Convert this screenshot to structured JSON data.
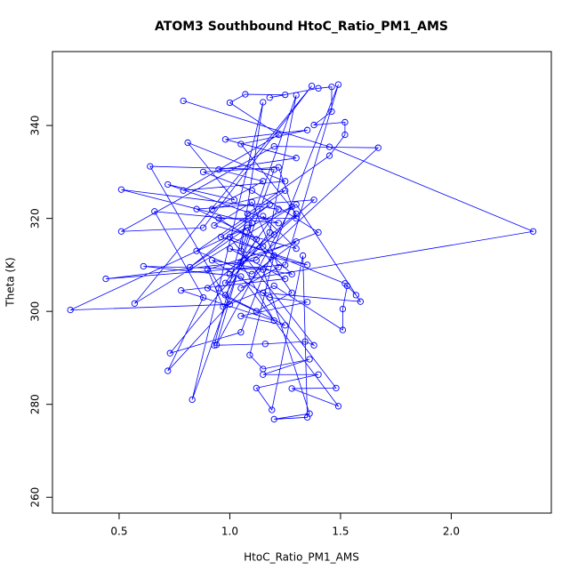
{
  "chart_data": {
    "type": "scatter",
    "title": "ATOM3 Southbound HtoC_Ratio_PM1_AMS",
    "x_label": "HtoC_Ratio_PM1_AMS",
    "y_label": "Theta (K)",
    "xlim": [
      0.199,
      2.452
    ],
    "ylim": [
      256.6,
      355.9
    ],
    "xticks": [
      0.5,
      {
        "value": 1.0,
        "label": "1.0"
      },
      1.5,
      {
        "value": 2.0,
        "label": "2.0"
      }
    ],
    "yticks": [
      260,
      280,
      300,
      320,
      340
    ],
    "color": "#0000ff",
    "lines": true,
    "markers": "open-circle",
    "x": [
      0.79,
      1.45,
      2.37,
      0.98,
      1.22,
      0.51,
      1.1,
      0.94,
      1.28,
      0.28,
      1.0,
      0.64,
      1.2,
      0.83,
      0.95,
      1.15,
      1.05,
      1.3,
      1.18,
      0.73,
      1.05,
      1.49,
      1.25,
      0.44,
      1.12,
      1.67,
      1.2,
      0.51,
      0.88,
      1.37,
      0.57,
      1.3,
      1.59,
      1.15,
      1.48,
      1.28,
      1.49,
      1.05,
      0.61,
      1.15,
      1.36,
      1.2,
      1.35,
      1.33,
      1.19,
      1.12,
      1.4,
      1.15,
      1.36,
      1.15,
      1.09,
      1.2,
      0.72,
      0.88,
      0.66,
      1.22,
      0.72,
      1.02,
      0.81,
      1.25,
      0.79,
      1.22,
      1.0,
      1.07,
      1.25,
      1.18,
      1.4,
      1.46,
      1.46,
      1.38,
      1.52,
      1.52,
      1.45,
      1.08,
      0.93,
      1.16,
      1.34,
      1.38,
      1.0,
      1.52,
      1.57,
      1.53,
      1.51,
      1.51,
      1.2,
      0.97,
      0.9,
      1.3,
      1.1,
      0.85,
      1.25,
      0.92,
      1.15,
      0.95,
      1.3,
      0.98,
      1.35,
      1.05,
      1.3,
      0.9,
      1.12,
      1.28,
      1.08,
      0.82,
      1.18,
      0.96,
      1.35,
      1.0,
      1.25,
      0.78,
      1.2,
      1.05,
      1.4,
      1.1,
      0.88,
      1.22,
      1.3,
      0.95,
      1.15,
      1.28,
      0.92,
      1.18,
      1.35,
      1.05,
      1.25,
      0.98,
      1.12,
      0.85,
      1.38,
      1.0,
      1.2,
      1.15,
      1.3,
      0.93,
      1.1,
      1.22,
      1.05
    ],
    "values": [
      345.3,
      335.4,
      317.2,
      306.1,
      322,
      326.2,
      319,
      292.8,
      322.5,
      300.3,
      301.5,
      331.2,
      330.5,
      281,
      305,
      345,
      313,
      346.5,
      317,
      291,
      295.5,
      348.8,
      310,
      307,
      311,
      335.2,
      335.5,
      317.2,
      318,
      348.5,
      301.7,
      323,
      302.1,
      304,
      283.5,
      283.4,
      279.6,
      307.5,
      309.7,
      309,
      278,
      276.8,
      277.2,
      312,
      278.8,
      283.5,
      286.4,
      286.4,
      289.7,
      287.6,
      290.6,
      312,
      287.2,
      303,
      321.5,
      319,
      327.3,
      324,
      336.3,
      328,
      326,
      338,
      344.9,
      346.7,
      346.6,
      346,
      348,
      348.3,
      343,
      340.1,
      340.7,
      338,
      333.5,
      321,
      292.7,
      293,
      293.5,
      292.7,
      316,
      306,
      303.5,
      305.5,
      300.5,
      296,
      305.5,
      301,
      309,
      315,
      308,
      313,
      326,
      322,
      328,
      330.5,
      333,
      337,
      339,
      336,
      321,
      305,
      300,
      304,
      318,
      309.5,
      323,
      316,
      310,
      313.5,
      307,
      304.5,
      298,
      310.5,
      317,
      326,
      330,
      331,
      320,
      320,
      314,
      308,
      311,
      303,
      302,
      299,
      297,
      303.5,
      315.5,
      322,
      324,
      308,
      316.5,
      320.5,
      313.5,
      318.5,
      323.5,
      309.5,
      305
    ]
  }
}
